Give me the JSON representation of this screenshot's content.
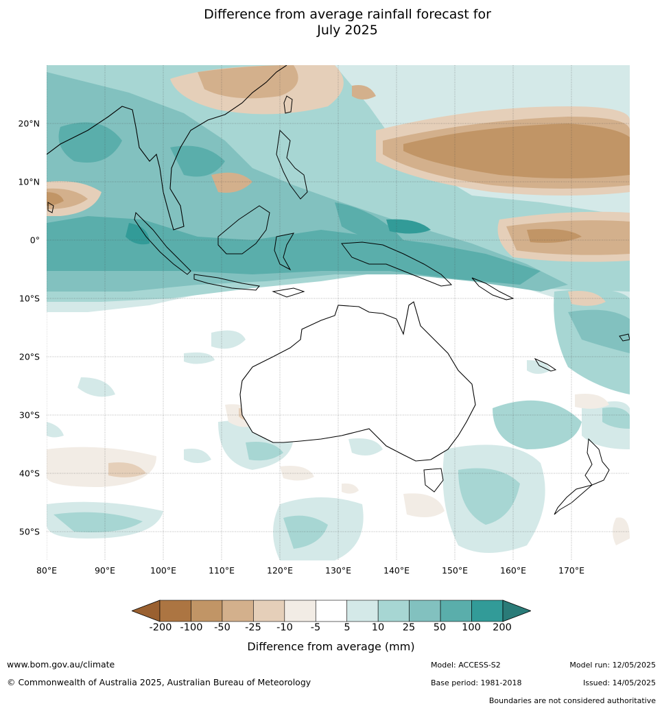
{
  "title": {
    "line1": "Difference from average rainfall forecast for",
    "line2": "July 2025"
  },
  "map": {
    "lon_labels": [
      "80°E",
      "90°E",
      "100°E",
      "110°E",
      "120°E",
      "130°E",
      "140°E",
      "150°E",
      "160°E",
      "170°E"
    ],
    "lat_labels": [
      "20°N",
      "10°N",
      "0°",
      "10°S",
      "20°S",
      "30°S",
      "40°S",
      "50°S"
    ],
    "extent": {
      "lon_min": 80,
      "lon_max": 180,
      "lat_min": -55,
      "lat_max": 30
    }
  },
  "colorbar": {
    "labels": [
      "-200",
      "-100",
      "-50",
      "-25",
      "-10",
      "-5",
      "5",
      "10",
      "25",
      "50",
      "100",
      "200"
    ],
    "colors": [
      "#9a6030",
      "#ac7542",
      "#c19566",
      "#d3b08c",
      "#e5cfb9",
      "#f2ece5",
      "#ffffff",
      "#d4e9e8",
      "#a7d6d3",
      "#82c1bf",
      "#5aaeab",
      "#329b98",
      "#2a7b78"
    ],
    "title": "Difference from average (mm)"
  },
  "footer": {
    "website": "www.bom.gov.au/climate",
    "copyright": "© Commonwealth of Australia 2025, Australian Bureau of Meteorology",
    "model": "Model: ACCESS-S2",
    "model_run": "Model run: 12/05/2025",
    "base_period": "Base period: 1981-2018",
    "issued": "Issued: 14/05/2025",
    "disclaimer": "Boundaries are not considered authoritative"
  }
}
